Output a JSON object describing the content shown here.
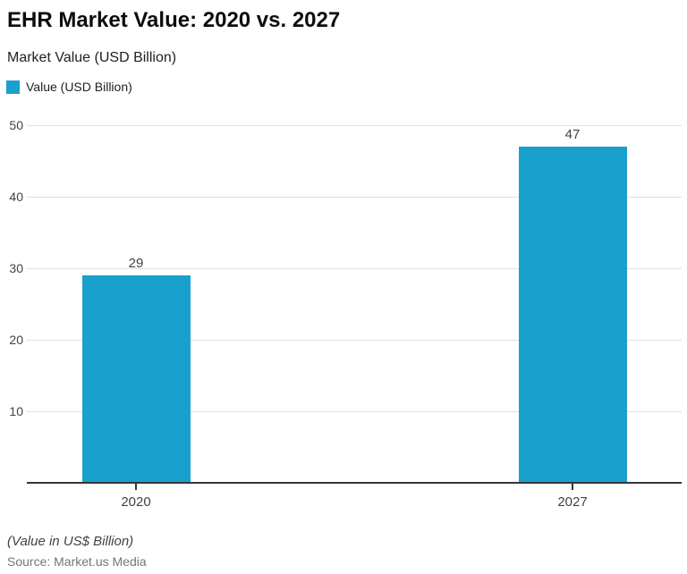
{
  "header": {
    "title": "EHR Market Value: 2020 vs. 2027",
    "subtitle": "Market Value (USD Billion)"
  },
  "legend": {
    "label": "Value (USD Billion)"
  },
  "footer": {
    "note": "(Value in US$ Billion)",
    "source": "Source: Market.us Media"
  },
  "colors": {
    "bar": "#1aa0cc",
    "axis": "#363636",
    "grid": "#e0e0e0",
    "tick_label": "#424242",
    "source_text": "#757575"
  },
  "chart_data": {
    "type": "bar",
    "title": "EHR Market Value: 2020 vs. 2027",
    "subtitle": "Market Value (USD Billion)",
    "categories": [
      "2020",
      "2027"
    ],
    "series": [
      {
        "name": "Value (USD Billion)",
        "values": [
          29,
          47
        ]
      }
    ],
    "data_labels": [
      "29",
      "47"
    ],
    "xlabel": "",
    "ylabel": "Market Value (USD Billion)",
    "ylim": [
      0,
      50
    ],
    "yticks": [
      10,
      20,
      30,
      40,
      50
    ],
    "grid": true,
    "legend_position": "top-left",
    "bar_color": "#1aa0cc"
  }
}
